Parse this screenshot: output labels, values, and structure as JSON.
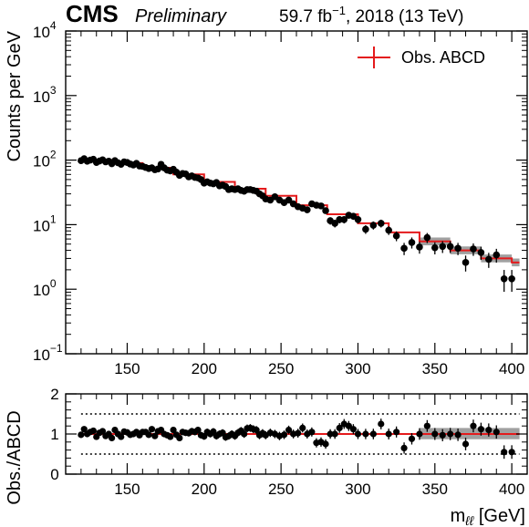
{
  "header": {
    "experiment": "CMS",
    "status": "Preliminary",
    "lumi_prefix": "59.7 fb",
    "lumi_exp": "−1",
    "lumi_suffix": ", 2018 (13 TeV)"
  },
  "colors": {
    "model": "#e41a1c",
    "data": "#000000",
    "band": "#a0a0a0"
  },
  "chart_data": [
    {
      "type": "scatter",
      "panel": "main",
      "xlim": [
        110,
        410
      ],
      "ylim": [
        0.1,
        10000
      ],
      "yscale": "log",
      "ylabel": "Counts per GeV",
      "y_ticks": [
        {
          "base": "10",
          "exp": "−1",
          "value": 0.1
        },
        {
          "base": "10",
          "exp": "0",
          "value": 1
        },
        {
          "base": "10",
          "exp": "1",
          "value": 10
        },
        {
          "base": "10",
          "exp": "2",
          "value": 100
        },
        {
          "base": "10",
          "exp": "3",
          "value": 1000
        },
        {
          "base": "10",
          "exp": "4",
          "value": 10000
        }
      ],
      "x_ticks": [
        "150",
        "200",
        "250",
        "300",
        "350",
        "400"
      ],
      "x_tick_values": [
        150,
        200,
        250,
        300,
        350,
        400
      ],
      "legend": {
        "label": "Obs. ABCD",
        "placement": "top-right"
      },
      "series": [
        {
          "name": "Obs. ABCD",
          "kind": "step",
          "x": [
            120,
            140,
            160,
            180,
            200,
            220,
            240,
            260,
            280,
            300,
            320,
            340,
            360,
            380,
            400
          ],
          "values": [
            100,
            90,
            76,
            60,
            46,
            36,
            28,
            20,
            14.5,
            10.5,
            7.6,
            5.5,
            4.0,
            3.0,
            2.6
          ]
        },
        {
          "name": "data",
          "kind": "points",
          "x": [
            120,
            122,
            124,
            126,
            128,
            130,
            132,
            134,
            136,
            138,
            140,
            142,
            144,
            146,
            148,
            150,
            152,
            154,
            156,
            158,
            160,
            162,
            164,
            166,
            168,
            170,
            172,
            174,
            176,
            178,
            180,
            182,
            184,
            186,
            188,
            190,
            192,
            194,
            196,
            198,
            200,
            202,
            204,
            206,
            208,
            210,
            212,
            214,
            216,
            218,
            220,
            222,
            224,
            226,
            228,
            230,
            232,
            234,
            236,
            238,
            240,
            243,
            246,
            249,
            252,
            255,
            258,
            261,
            264,
            267,
            270,
            273,
            276,
            279,
            282,
            285,
            288,
            291,
            294,
            297,
            300,
            305,
            310,
            315,
            320,
            325,
            330,
            335,
            340,
            345,
            350,
            355,
            360,
            365,
            370,
            375,
            380,
            385,
            390,
            395,
            400
          ],
          "values": [
            98,
            105,
            96,
            100,
            103,
            92,
            97,
            101,
            94,
            96,
            88,
            98,
            91,
            86,
            94,
            92,
            87,
            84,
            89,
            81,
            80,
            77,
            74,
            76,
            71,
            73,
            86,
            76,
            70,
            68,
            72,
            65,
            58,
            62,
            61,
            55,
            57,
            54,
            53,
            50,
            44,
            46,
            44,
            43,
            45,
            40,
            41,
            39,
            35,
            36,
            35,
            36,
            34,
            33,
            35,
            35,
            34,
            33,
            30,
            28,
            25,
            24,
            27,
            24,
            22,
            24,
            21,
            19,
            18,
            17,
            21,
            20,
            19.5,
            16.5,
            11.5,
            10.5,
            12,
            12,
            14,
            13.5,
            12,
            8.5,
            9.8,
            10.5,
            8.2,
            6.7,
            4.3,
            5.3,
            4.5,
            6.3,
            4.4,
            4.6,
            4.6,
            4.3,
            2.6,
            4.2,
            3.7,
            2.9,
            3.4,
            1.45,
            1.45
          ]
        }
      ]
    },
    {
      "type": "scatter",
      "panel": "ratio",
      "xlim": [
        110,
        410
      ],
      "ylim": [
        0,
        2
      ],
      "xlabel": "m",
      "xlabel_sub": "ℓℓ",
      "xlabel_unit": " [GeV]",
      "ylabel": "Obs./ABCD",
      "y_ticks": [
        "0",
        "1",
        "2"
      ],
      "y_tick_values": [
        0,
        1,
        2
      ],
      "x_ticks": [
        "150",
        "200",
        "250",
        "300",
        "350",
        "400"
      ],
      "x_tick_values": [
        150,
        200,
        250,
        300,
        350,
        400
      ],
      "reference_lines": [
        0.5,
        1.0,
        1.5
      ],
      "x": [
        120,
        122,
        124,
        126,
        128,
        130,
        132,
        134,
        136,
        138,
        140,
        142,
        144,
        146,
        148,
        150,
        152,
        154,
        156,
        158,
        160,
        162,
        164,
        166,
        168,
        170,
        172,
        174,
        176,
        178,
        180,
        182,
        184,
        186,
        188,
        190,
        192,
        194,
        196,
        198,
        200,
        202,
        204,
        206,
        208,
        210,
        212,
        214,
        216,
        218,
        220,
        222,
        224,
        226,
        228,
        230,
        232,
        234,
        236,
        238,
        240,
        243,
        246,
        249,
        252,
        255,
        258,
        261,
        264,
        267,
        270,
        273,
        276,
        279,
        282,
        285,
        288,
        291,
        294,
        297,
        300,
        305,
        310,
        315,
        320,
        325,
        330,
        335,
        340,
        345,
        350,
        355,
        360,
        365,
        370,
        375,
        380,
        385,
        390,
        395,
        400
      ],
      "values": [
        0.98,
        1.12,
        1.0,
        1.05,
        1.08,
        0.93,
        1.03,
        1.07,
        0.95,
        1.0,
        0.9,
        1.1,
        1.0,
        0.93,
        1.06,
        1.04,
        0.98,
        1.0,
        1.05,
        0.97,
        1.05,
        1.05,
        0.98,
        1.12,
        0.95,
        1.07,
        1.1,
        1.0,
        0.97,
        0.93,
        1.1,
        0.98,
        0.9,
        1.05,
        1.03,
        1.02,
        1.07,
        1.05,
        1.1,
        0.97,
        0.94,
        1.05,
        1.0,
        1.06,
        0.95,
        1.0,
        1.03,
        0.92,
        0.95,
        1.0,
        0.95,
        1.03,
        1.08,
        1.0,
        1.14,
        1.15,
        1.12,
        1.1,
        0.97,
        1.02,
        0.97,
        1.03,
        1.0,
        0.95,
        0.98,
        1.1,
        1.0,
        1.02,
        1.15,
        1.0,
        1.05,
        0.78,
        0.8,
        0.75,
        1.0,
        1.0,
        1.15,
        1.25,
        1.2,
        1.12,
        1.0,
        1.0,
        1.0,
        1.25,
        1.0,
        1.05,
        0.65,
        0.88,
        1.0,
        1.2,
        1.0,
        0.97,
        1.0,
        0.98,
        0.75,
        1.2,
        1.12,
        1.1,
        1.05,
        0.55,
        0.55
      ]
    }
  ]
}
